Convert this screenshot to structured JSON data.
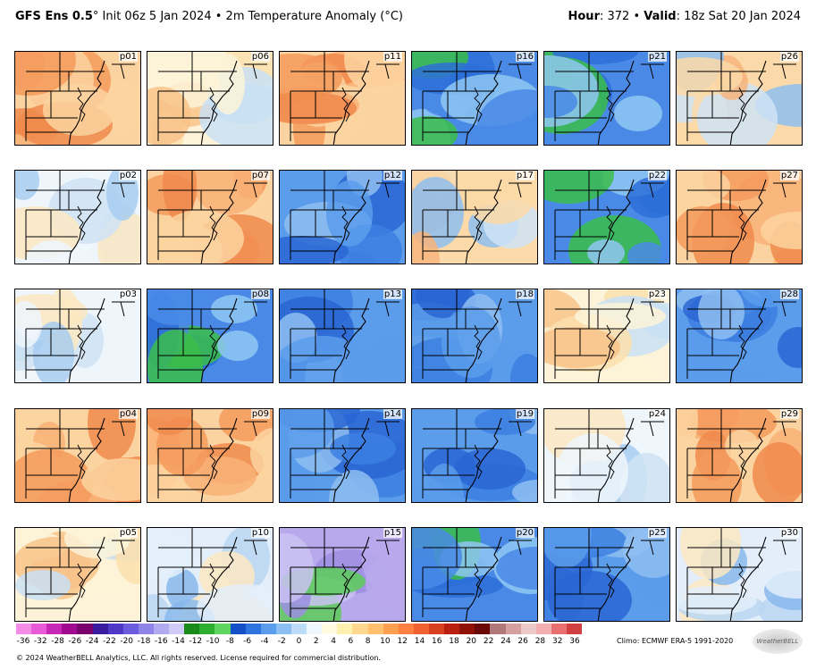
{
  "header": {
    "model": "GFS Ens 0.5",
    "degree": "°",
    "init": "Init 06z 5 Jan 2024",
    "bullet": "•",
    "field": "2m Temperature Anomaly (°C)",
    "hour_label": "Hour",
    "hour_value": ": 372",
    "valid_label": "Valid",
    "valid_value": ": 18z Sat 20 Jan 2024"
  },
  "panels": [
    {
      "label": "p01",
      "field": "warm"
    },
    {
      "label": "p06",
      "field": "neutral-warm"
    },
    {
      "label": "p11",
      "field": "warm"
    },
    {
      "label": "p16",
      "field": "cold-green"
    },
    {
      "label": "p21",
      "field": "cold-green"
    },
    {
      "label": "p26",
      "field": "mixed"
    },
    {
      "label": "p02",
      "field": "neutral"
    },
    {
      "label": "p07",
      "field": "warm"
    },
    {
      "label": "p12",
      "field": "cold"
    },
    {
      "label": "p17",
      "field": "mixed"
    },
    {
      "label": "p22",
      "field": "cold-green"
    },
    {
      "label": "p27",
      "field": "warm"
    },
    {
      "label": "p03",
      "field": "neutral"
    },
    {
      "label": "p08",
      "field": "cold-green"
    },
    {
      "label": "p13",
      "field": "cold"
    },
    {
      "label": "p18",
      "field": "cold"
    },
    {
      "label": "p23",
      "field": "neutral-warm"
    },
    {
      "label": "p28",
      "field": "cold"
    },
    {
      "label": "p04",
      "field": "warm"
    },
    {
      "label": "p09",
      "field": "warm"
    },
    {
      "label": "p14",
      "field": "cold"
    },
    {
      "label": "p19",
      "field": "cold"
    },
    {
      "label": "p24",
      "field": "neutral"
    },
    {
      "label": "p29",
      "field": "warm"
    },
    {
      "label": "p05",
      "field": "neutral-warm"
    },
    {
      "label": "p10",
      "field": "neutral-cold"
    },
    {
      "label": "p15",
      "field": "very-cold"
    },
    {
      "label": "p20",
      "field": "cold-green"
    },
    {
      "label": "p25",
      "field": "cold"
    },
    {
      "label": "p30",
      "field": "neutral-cold"
    }
  ],
  "colorbar": {
    "ticks": [
      "-36",
      "-32",
      "-28",
      "-26",
      "-24",
      "-22",
      "-20",
      "-18",
      "-16",
      "-14",
      "-12",
      "-10",
      "-8",
      "-6",
      "-4",
      "-2",
      "0",
      "2",
      "4",
      "6",
      "8",
      "10",
      "12",
      "14",
      "16",
      "18",
      "20",
      "22",
      "24",
      "26",
      "28",
      "32",
      "36"
    ],
    "colors": [
      "#f58ce8",
      "#e85ad8",
      "#c828b8",
      "#a00a90",
      "#7a0070",
      "#3a1a9e",
      "#5038c8",
      "#6a5cdc",
      "#8e84e8",
      "#b2aaf0",
      "#cfcaf6",
      "#1a8a1a",
      "#2eae2e",
      "#5ed65e",
      "#1450c8",
      "#2e74dc",
      "#5a9cec",
      "#8cc0f4",
      "#bcdcfa",
      "#eef6fe",
      "#fffbe0",
      "#fff0b0",
      "#ffd890",
      "#ffc070",
      "#ffa050",
      "#ff8040",
      "#f06030",
      "#d84020",
      "#b82010",
      "#901008",
      "#6a0808",
      "#b07878",
      "#d4a0a0",
      "#ecc8c8",
      "#f4b0b0",
      "#e87070",
      "#d04040"
    ],
    "climo": "Climo: ECMWF ERA-5 1991-2020",
    "logo_text": "WeatherBELL"
  },
  "footer": {
    "copyright": "© 2024 WeatherBELL Analytics, LLC. All rights reserved. License required for commercial distribution."
  }
}
